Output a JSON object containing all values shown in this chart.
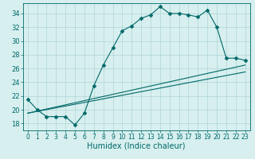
{
  "title": "",
  "xlabel": "Humidex (Indice chaleur)",
  "ylabel": "",
  "bg_color": "#d7efef",
  "line_color": "#006868",
  "grid_color": "#b0d4d4",
  "xlim": [
    -0.5,
    23.5
  ],
  "ylim": [
    17.0,
    35.5
  ],
  "xticks": [
    0,
    1,
    2,
    3,
    4,
    5,
    6,
    7,
    8,
    9,
    10,
    11,
    12,
    13,
    14,
    15,
    16,
    17,
    18,
    19,
    20,
    21,
    22,
    23
  ],
  "yticks": [
    18,
    20,
    22,
    24,
    26,
    28,
    30,
    32,
    34
  ],
  "curve1_x": [
    0,
    1,
    2,
    3,
    4,
    5,
    6,
    7,
    8,
    9,
    10,
    11,
    12,
    13,
    14,
    15,
    16,
    17,
    18,
    19,
    20,
    21,
    22,
    23
  ],
  "curve1_y": [
    21.5,
    20.0,
    19.0,
    19.0,
    19.0,
    17.8,
    19.5,
    23.5,
    26.5,
    29.0,
    31.5,
    32.2,
    33.3,
    33.8,
    35.0,
    34.0,
    34.0,
    33.8,
    33.5,
    34.5,
    32.0,
    27.5,
    27.5,
    27.2
  ],
  "curve2_x": [
    0,
    23
  ],
  "curve2_y": [
    19.5,
    26.5
  ],
  "curve3_x": [
    0,
    23
  ],
  "curve3_y": [
    19.5,
    25.5
  ],
  "marker": "D",
  "marker_size": 2.5,
  "fontsize_label": 7,
  "fontsize_tick": 6
}
